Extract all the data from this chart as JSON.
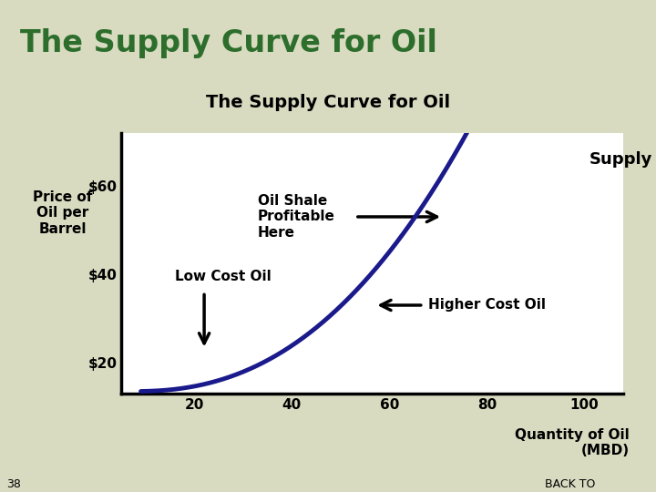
{
  "title_main": "The Supply Curve for Oil",
  "title_main_color": "#2d6e2d",
  "header_bg_color": "#c5ca9a",
  "chart_bg_color": "#ffffff",
  "outer_bg_color": "#d8dbc0",
  "chart_title": "The Supply Curve for Oil",
  "chart_title_bg": "#b8c8e0",
  "ylabel_line1": "Price of",
  "ylabel_line2": "Oil per",
  "ylabel_line3": "Barrel",
  "xlabel_line1": "Quantity of Oil",
  "xlabel_line2": "(MBD)",
  "yticks": [
    20,
    40,
    60
  ],
  "ytick_labels": [
    "$20",
    "$40",
    "$60"
  ],
  "xticks": [
    20,
    40,
    60,
    80,
    100
  ],
  "xlim": [
    5,
    108
  ],
  "ylim": [
    13,
    72
  ],
  "curve_color": "#1a1a8c",
  "curve_lw": 3.5,
  "supply_label": "Supply",
  "annotation_oil_shale": "Oil Shale\nProfitable\nHere",
  "annotation_low_cost": "Low Cost Oil",
  "annotation_higher_cost": "Higher Cost Oil",
  "bottom_text": "38",
  "back_to_text": "BACK TO"
}
